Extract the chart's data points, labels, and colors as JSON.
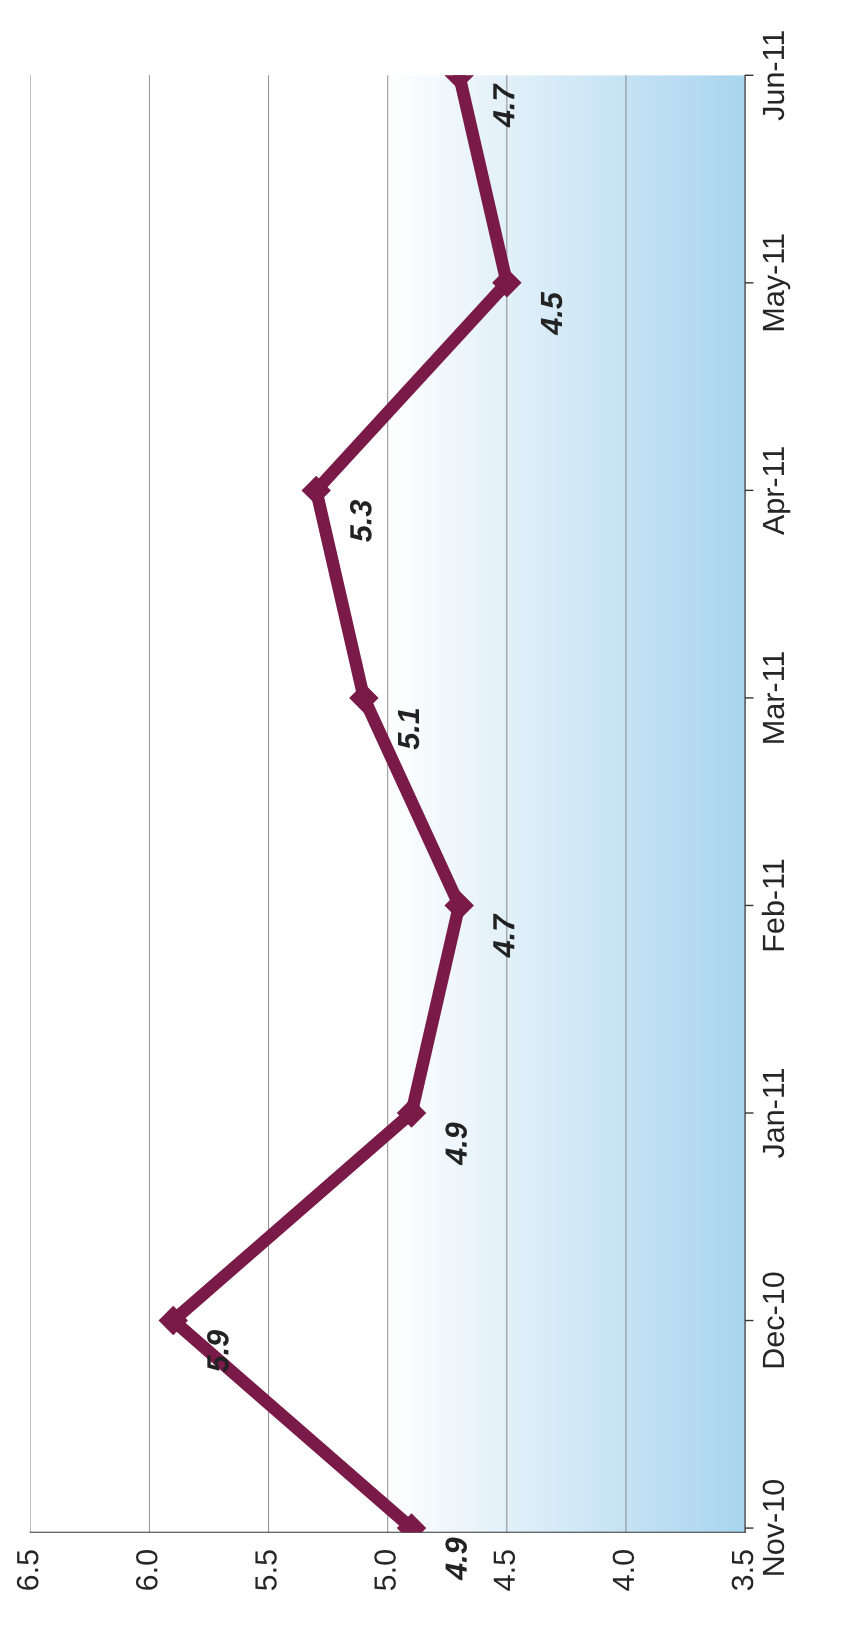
{
  "chart_data": {
    "type": "line",
    "orientation": "horizontal",
    "categories": [
      "Jun-11",
      "May-11",
      "Apr-11",
      "Mar-11",
      "Feb-11",
      "Jan-11",
      "Dec-10",
      "Nov-10"
    ],
    "series": [
      {
        "color": "#7a1a48",
        "values": [
          4.7,
          4.5,
          5.3,
          5.1,
          4.7,
          4.9,
          5.9,
          4.9
        ]
      }
    ],
    "xlim": [
      6.5,
      3.5
    ],
    "xticks": [
      {
        "value": 6.5,
        "label": "6.5"
      },
      {
        "value": 6.0,
        "label": "6.0"
      },
      {
        "value": 5.5,
        "label": "5.5"
      },
      {
        "value": 5.0,
        "label": "5.0"
      },
      {
        "value": 4.5,
        "label": "4.5"
      },
      {
        "value": 4.0,
        "label": "4.0"
      },
      {
        "value": 3.5,
        "label": "3.5"
      }
    ],
    "grid": "x",
    "marker": "diamond",
    "line_style": "solid",
    "data_labels": true,
    "legend": false
  }
}
